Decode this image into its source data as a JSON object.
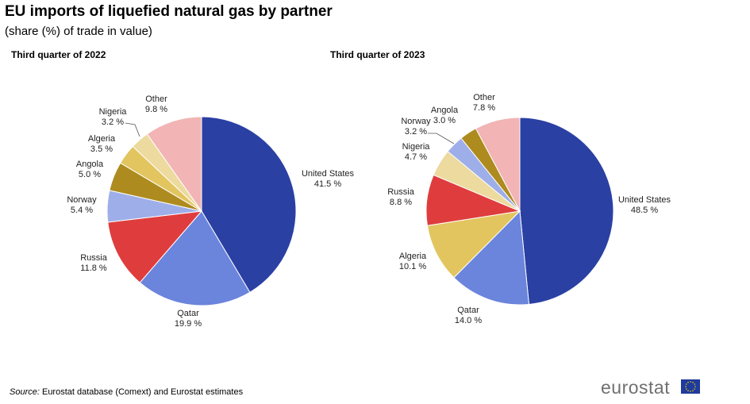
{
  "title": "EU imports of liquefied natural gas by partner",
  "subtitle": "(share (%) of trade in value)",
  "source_label": "Source:",
  "source_text": " Eurostat database (Comext) and Eurostat estimates",
  "logo_text": "eurostat",
  "colors": {
    "United States": "#2a40a3",
    "Qatar": "#6b84dc",
    "Russia": "#df3d3d",
    "Norway": "#9eaee8",
    "Angola": "#ae8b1f",
    "Algeria": "#e2c55f",
    "Nigeria": "#ecda9e",
    "Other": "#f2b4b4"
  },
  "chart_data": [
    {
      "type": "pie",
      "title": "Third quarter of 2022",
      "slices": [
        {
          "label": "United States",
          "value": 41.5,
          "text": "41.5 %"
        },
        {
          "label": "Qatar",
          "value": 19.9,
          "text": "19.9 %"
        },
        {
          "label": "Russia",
          "value": 11.8,
          "text": "11.8 %"
        },
        {
          "label": "Norway",
          "value": 5.4,
          "text": "5.4 %"
        },
        {
          "label": "Angola",
          "value": 5.0,
          "text": "5.0 %"
        },
        {
          "label": "Algeria",
          "value": 3.5,
          "text": "3.5 %"
        },
        {
          "label": "Nigeria",
          "value": 3.2,
          "text": "3.2 %"
        },
        {
          "label": "Other",
          "value": 9.8,
          "text": "9.8 %"
        }
      ]
    },
    {
      "type": "pie",
      "title": "Third quarter of 2023",
      "slices": [
        {
          "label": "United States",
          "value": 48.5,
          "text": "48.5 %"
        },
        {
          "label": "Qatar",
          "value": 14.0,
          "text": "14.0 %"
        },
        {
          "label": "Algeria",
          "value": 10.1,
          "text": "10.1 %"
        },
        {
          "label": "Russia",
          "value": 8.8,
          "text": "8.8 %"
        },
        {
          "label": "Nigeria",
          "value": 4.7,
          "text": "4.7 %"
        },
        {
          "label": "Norway",
          "value": 3.2,
          "text": "3.2 %"
        },
        {
          "label": "Angola",
          "value": 3.0,
          "text": "3.0 %"
        },
        {
          "label": "Other",
          "value": 7.8,
          "text": "7.8 %"
        }
      ]
    }
  ]
}
